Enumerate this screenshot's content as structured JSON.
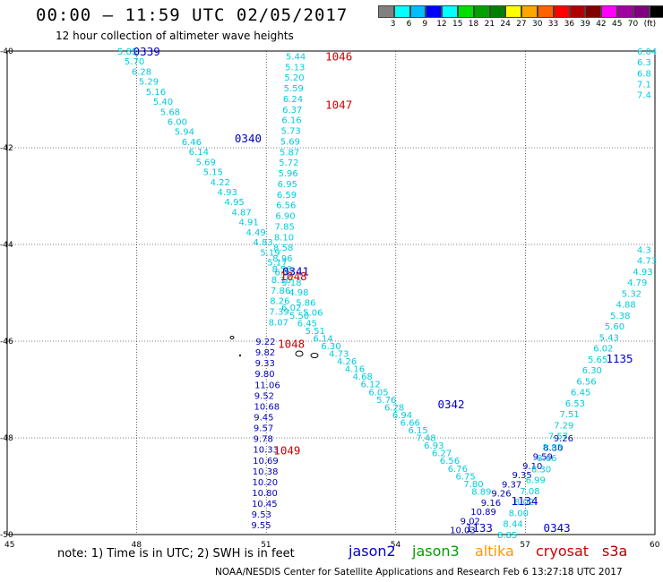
{
  "title": "00:00 – 11:59 UTC 02/05/2017",
  "subtitle": "12 hour collection of altimeter wave heights",
  "legend": {
    "colors": [
      "#808080",
      "#00ffff",
      "#00bfff",
      "#0000ff",
      "#00ffff",
      "#00e000",
      "#00a000",
      "#008000",
      "#ffff00",
      "#ffa500",
      "#ff6000",
      "#ff0000",
      "#b00000",
      "#800000",
      "#ff00ff",
      "#a000a0",
      "#800080",
      "#000000"
    ],
    "labels": [
      "3",
      "6",
      "9",
      "12",
      "15",
      "18",
      "21",
      "24",
      "27",
      "30",
      "33",
      "36",
      "39",
      "42",
      "45",
      "70",
      "(ft)"
    ]
  },
  "axes": {
    "x_ticks": [
      "45",
      "48",
      "51",
      "54",
      "57",
      "60"
    ],
    "y_ticks": [
      "-40",
      "-42",
      "-44",
      "-46",
      "-48",
      "-50"
    ]
  },
  "pass_labels": [
    {
      "text": "0339",
      "color": "#0000cc",
      "lon": 48.25,
      "lat": -40.0
    },
    {
      "text": "0340",
      "color": "#0000cc",
      "lon": 50.6,
      "lat": -41.8
    },
    {
      "text": "0341",
      "color": "#0000cc",
      "lon": 51.7,
      "lat": -44.55
    },
    {
      "text": "0342",
      "color": "#0000cc",
      "lon": 55.3,
      "lat": -47.3
    },
    {
      "text": "0343",
      "color": "#0000cc",
      "lon": 57.75,
      "lat": -49.85
    },
    {
      "text": "1046",
      "color": "#cc0000",
      "lon": 52.7,
      "lat": -40.1
    },
    {
      "text": "1047",
      "color": "#cc0000",
      "lon": 52.7,
      "lat": -41.1
    },
    {
      "text": "1048",
      "color": "#cc0000",
      "lon": 51.65,
      "lat": -44.65
    },
    {
      "text": "1048",
      "color": "#cc0000",
      "lon": 51.6,
      "lat": -46.05
    },
    {
      "text": "1049",
      "color": "#cc0000",
      "lon": 51.5,
      "lat": -48.25
    },
    {
      "text": "1134",
      "color": "#0000cc",
      "lon": 57.0,
      "lat": -49.3
    },
    {
      "text": "1133",
      "color": "#0000cc",
      "lon": 55.95,
      "lat": -49.85
    },
    {
      "text": "1135",
      "color": "#0000cc",
      "lon": 59.2,
      "lat": -46.35
    }
  ],
  "tracks": [
    {
      "name": "track-0339",
      "color": "#00ccdd",
      "lon_start": 47.8,
      "lat_start": -40.0,
      "lon_end": 52.1,
      "lat_end": -45.4,
      "values": [
        "5.85",
        "5.70",
        "6.28",
        "5.29",
        "5.16",
        "5.40",
        "5.68",
        "6.00",
        "5.94",
        "6.46",
        "6.14",
        "5.69",
        "5.15",
        "4.22",
        "4.93",
        "4.95",
        "4.87",
        "4.91",
        "4.49",
        "4.83",
        "5.19",
        "5.17",
        "6.72",
        "5.18",
        "4.98",
        "5.86",
        "5.06"
      ]
    },
    {
      "name": "track-1046",
      "color": "#00ccdd",
      "lon_start": 51.7,
      "lat_start": -40.1,
      "lon_end": 51.3,
      "lat_end": -45.6,
      "values": [
        "5.44",
        "5.13",
        "5.20",
        "5.59",
        "6.24",
        "6.37",
        "6.16",
        "5.73",
        "5.69",
        "5.87",
        "5.72",
        "5.96",
        "6.95",
        "6.59",
        "6.56",
        "6.90",
        "7.85",
        "8.10",
        "8.58",
        "8.96",
        "8.56",
        "8.16",
        "7.86",
        "8.26",
        "7.39",
        "8.07"
      ]
    },
    {
      "name": "track-0341",
      "color": "#00ccdd",
      "lon_start": 51.6,
      "lat_start": -45.3,
      "lon_end": 56.0,
      "lat_end": -49.1,
      "values": [
        "6.02",
        "5.50",
        "6.45",
        "5.51",
        "6.14",
        "6.30",
        "4.73",
        "4.26",
        "4.16",
        "4.68",
        "6.12",
        "6.05",
        "5.76",
        "6.28",
        "6.94",
        "6.66",
        "6.15",
        "7.48",
        "6.93",
        "6.27",
        "6.56",
        "6.76",
        "6.75",
        "7.80",
        "8.89"
      ]
    },
    {
      "name": "track-1048",
      "color": "#0000bb",
      "lon_start": 51.0,
      "lat_start": -46.0,
      "lon_end": 50.9,
      "lat_end": -49.8,
      "values": [
        "9.22",
        "9.82",
        "9.33",
        "9.80",
        "11.06",
        "9.52",
        "10.68",
        "9.45",
        "9.57",
        "9.78",
        "10.33",
        "10.69",
        "10.38",
        "10.20",
        "10.80",
        "10.45",
        "9.53",
        "9.55"
      ]
    },
    {
      "name": "track-1133",
      "color": "#0000bb",
      "lon_start": 57.9,
      "lat_start": -48.0,
      "lon_end": 55.5,
      "lat_end": -49.9,
      "values": [
        "9.26",
        "8.30",
        "9.59",
        "9.10",
        "9.35",
        "9.37",
        "9.26",
        "9.16",
        "10.89",
        "9.02",
        "10.03"
      ]
    },
    {
      "name": "track-1135",
      "color": "#00ccdd",
      "lon_start": 60.0,
      "lat_start": -44.1,
      "lon_end": 56.6,
      "lat_end": -50.0,
      "values": [
        "4.3",
        "4.73",
        "4.93",
        "4.79",
        "5.32",
        "4.88",
        "5.38",
        "5.60",
        "5.43",
        "6.02",
        "5.65",
        "6.30",
        "6.56",
        "6.45",
        "6.53",
        "7.51",
        "7.29",
        "7.57",
        "8.83",
        "8.66",
        "8.30",
        "6.99",
        "7.08",
        "8.02",
        "8.00",
        "8.44",
        "8.85"
      ]
    },
    {
      "name": "track-edge",
      "color": "#00ccdd",
      "lon_start": 60.0,
      "lat_start": -40.0,
      "lon_end": 60.0,
      "lat_end": -40.9,
      "values": [
        "6.04",
        "6.3",
        "6.8",
        "7.1",
        "7.4"
      ]
    }
  ],
  "note": "note: 1) Time is in UTC; 2) SWH is in feet",
  "satellites": [
    {
      "name": "jason2",
      "color": "#0000cc"
    },
    {
      "name": "jason3",
      "color": "#00a000"
    },
    {
      "name": "altika",
      "color": "#ff9900"
    },
    {
      "name": "cryosat",
      "color": "#cc0000"
    },
    {
      "name": "s3a",
      "color": "#aa0000"
    }
  ],
  "footer": "NOAA/NESDIS Center for Satellite Applications and Research     Feb  6 13:27:18 UTC 2017"
}
